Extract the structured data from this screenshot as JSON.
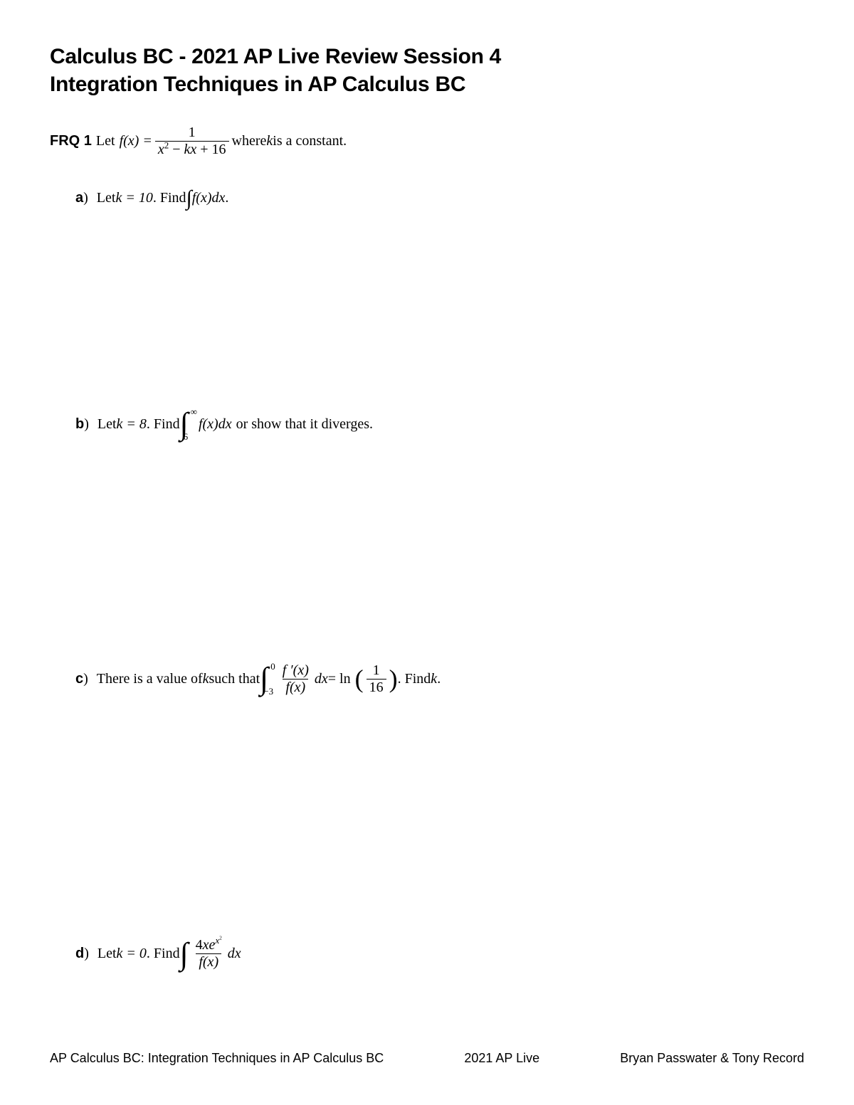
{
  "title_line1": "Calculus BC - 2021 AP Live Review Session 4",
  "title_line2": "Integration Techniques in AP Calculus BC",
  "frq": {
    "label": "FRQ 1",
    "let_text": "Let",
    "func_lhs": "f(x) =",
    "frac_num": "1",
    "frac_den_x2": "x",
    "frac_den_minus": " − ",
    "frac_den_kx": "kx",
    "frac_den_plus16": " + 16",
    "where_text": " where ",
    "k_var": "k",
    "constant_text": " is a constant."
  },
  "part_a": {
    "label": "a",
    "paren": ")",
    "let": "Let ",
    "k_eq": "k = 10",
    "find": ". Find ",
    "fxdx": "f(x)dx",
    "period": "."
  },
  "part_b": {
    "label": "b",
    "paren": ")",
    "let": "Let ",
    "k_eq": "k = 8",
    "find": ". Find ",
    "upper": "∞",
    "lower": "6",
    "fxdx": "f(x)dx",
    "or_show": " or show that it diverges."
  },
  "part_c": {
    "label": "c",
    "paren": ")",
    "there_is": "There is a value of ",
    "k_var": "k",
    "such_that": " such that ",
    "upper": "0",
    "lower": "−3",
    "fprime": "f ′(x)",
    "fx": "f(x)",
    "dx": "dx",
    "eq": " = ln",
    "ln_num": "1",
    "ln_den": "16",
    "find_k": ". Find ",
    "k_var2": "k",
    "period": "."
  },
  "part_d": {
    "label": "d",
    "paren": ")",
    "let": "Let ",
    "k_eq": "k = 0",
    "find": ". Find ",
    "num_4x": "4",
    "num_x": "xe",
    "exp_x": "x",
    "exp_2": "2",
    "fx": "f(x)",
    "dx": "dx"
  },
  "footer": {
    "left": "AP Calculus BC: Integration Techniques in AP Calculus BC",
    "mid": "2021 AP Live",
    "right": "Bryan Passwater & Tony Record"
  },
  "style": {
    "page_bg": "#ffffff",
    "text_color": "#000000",
    "title_fontsize": 30,
    "body_fontsize": 20,
    "footer_fontsize": 18
  }
}
